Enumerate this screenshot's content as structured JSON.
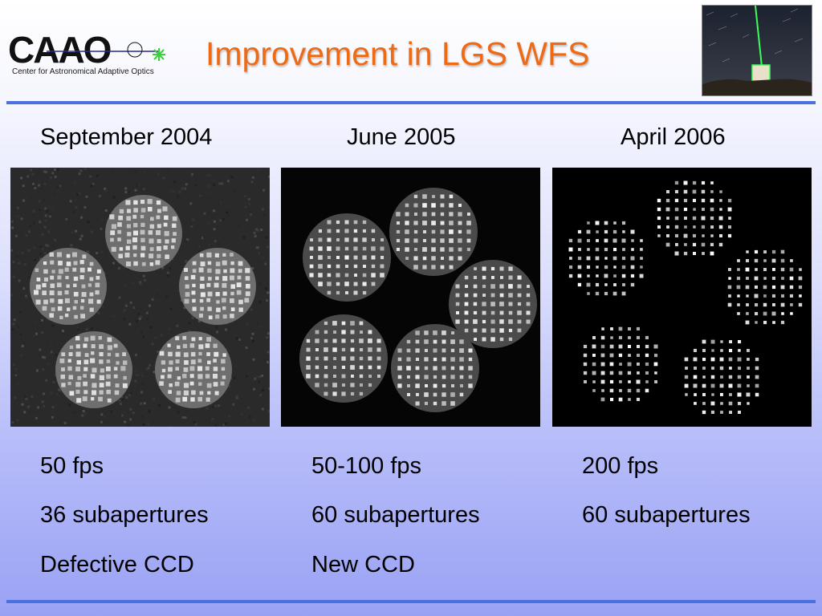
{
  "header": {
    "logo_text": "CAAO",
    "logo_caption": "Center for Astronomical Adaptive Optics",
    "title": "Improvement in LGS WFS"
  },
  "columns": [
    {
      "date": "September 2004",
      "fps": "50 fps",
      "subapertures": "36 subapertures",
      "note": "Defective CCD",
      "subaperture_count": 36
    },
    {
      "date": "June 2005",
      "fps": "50-100 fps",
      "subapertures": "60 subapertures",
      "note": "New CCD",
      "subaperture_count": 60
    },
    {
      "date": "April 2006",
      "fps": "200 fps",
      "subapertures": "60 subapertures",
      "note": "",
      "subaperture_count": 60
    }
  ],
  "colors": {
    "title": "#ee6a14",
    "rule": "#4a6fe0",
    "laser": "#39ff5a",
    "logo_accent": "#3ad13a"
  },
  "icons": {
    "logo": "caao-logo",
    "photo": "laser-guide-star-photo"
  }
}
